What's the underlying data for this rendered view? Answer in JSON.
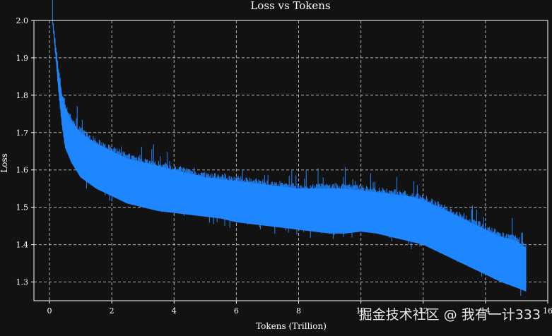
{
  "chart_data": {
    "type": "line",
    "title": "Loss vs Tokens",
    "xlabel": "Tokens (Trillion)",
    "ylabel": "Loss",
    "xlim": [
      -0.5,
      16
    ],
    "ylim": [
      1.25,
      2.0
    ],
    "x_ticks": [
      0,
      2,
      4,
      6,
      8,
      10,
      12,
      14,
      16
    ],
    "y_ticks": [
      1.3,
      1.4,
      1.5,
      1.6,
      1.7,
      1.8,
      1.9,
      2.0
    ],
    "grid": true,
    "series": [
      {
        "color": "#1f87ff",
        "x": [
          0.1,
          0.2,
          0.3,
          0.4,
          0.5,
          0.7,
          1.0,
          1.5,
          2.0,
          2.5,
          3.0,
          3.5,
          4.0,
          4.5,
          5.0,
          5.5,
          6.0,
          6.5,
          7.0,
          7.5,
          8.0,
          8.5,
          9.0,
          9.5,
          10.0,
          10.5,
          11.0,
          11.5,
          12.0,
          12.5,
          13.0,
          13.5,
          14.0,
          14.5,
          15.0,
          15.3
        ],
        "upper": [
          2.0,
          1.93,
          1.86,
          1.8,
          1.77,
          1.73,
          1.7,
          1.67,
          1.65,
          1.63,
          1.62,
          1.61,
          1.6,
          1.59,
          1.58,
          1.575,
          1.57,
          1.565,
          1.56,
          1.555,
          1.55,
          1.55,
          1.55,
          1.55,
          1.545,
          1.54,
          1.535,
          1.53,
          1.52,
          1.5,
          1.48,
          1.46,
          1.44,
          1.42,
          1.41,
          1.39
        ],
        "lower": [
          1.99,
          1.9,
          1.8,
          1.72,
          1.66,
          1.62,
          1.58,
          1.55,
          1.53,
          1.51,
          1.5,
          1.49,
          1.485,
          1.48,
          1.475,
          1.47,
          1.46,
          1.455,
          1.45,
          1.445,
          1.44,
          1.435,
          1.43,
          1.43,
          1.435,
          1.43,
          1.42,
          1.41,
          1.4,
          1.38,
          1.36,
          1.34,
          1.32,
          1.3,
          1.285,
          1.275
        ]
      }
    ]
  },
  "watermark": "掘金技术社区 @ 我有一计333"
}
